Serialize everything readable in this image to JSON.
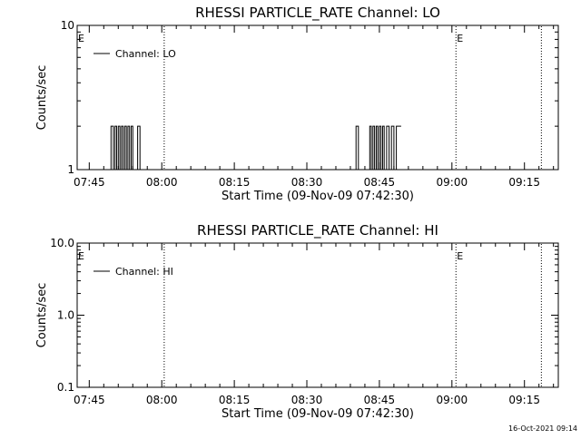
{
  "footer": {
    "timestamp": "16-Oct-2021 09:14"
  },
  "chart_data": [
    {
      "type": "line",
      "title": "RHESSI PARTICLE_RATE Channel: LO",
      "xlabel": "Start Time (09-Nov-09 07:42:30)",
      "ylabel": "Counts/sec",
      "yscale": "log",
      "ylim": [
        1,
        10
      ],
      "yticks": [
        1,
        10
      ],
      "ytick_labels": [
        "1",
        "10"
      ],
      "xlim": [
        "07:42:30",
        "09:22:00"
      ],
      "xticks": [
        "07:45",
        "08:00",
        "08:15",
        "08:30",
        "08:45",
        "09:00",
        "09:15"
      ],
      "legend": {
        "placement": "top-left",
        "entries": [
          "Channel: LO"
        ]
      },
      "markers": [
        {
          "time": "07:42:30",
          "label": "E",
          "line": false
        },
        {
          "time": "08:00:30",
          "label": "",
          "line": true
        },
        {
          "time": "09:00:50",
          "label": "E",
          "line": true
        },
        {
          "time": "09:18:30",
          "label": "",
          "line": true
        }
      ],
      "grid": false,
      "series": [
        {
          "name": "Channel: LO",
          "x": [
            "07:49:00",
            "07:49:30",
            "07:49:30",
            "07:50:00",
            "07:50:00",
            "07:50:20",
            "07:50:20",
            "07:50:40",
            "07:50:40",
            "07:51:00",
            "07:51:00",
            "07:51:20",
            "07:51:20",
            "07:51:40",
            "07:51:40",
            "07:52:00",
            "07:52:00",
            "07:52:20",
            "07:52:20",
            "07:52:40",
            "07:52:40",
            "07:53:00",
            "07:53:00",
            "07:53:20",
            "07:53:20",
            "07:53:40",
            "07:53:40",
            "07:54:00",
            "07:54:00",
            "07:55:00",
            "07:55:00",
            "07:55:30",
            "07:55:30",
            "07:55:50",
            "07:55:50",
            "08:40:10",
            "08:40:10",
            "08:40:40",
            "08:40:40",
            "08:43:00",
            "08:43:00",
            "08:43:20",
            "08:43:20",
            "08:43:40",
            "08:43:40",
            "08:44:00",
            "08:44:00",
            "08:44:20",
            "08:44:20",
            "08:44:40",
            "08:44:40",
            "08:45:00",
            "08:45:00",
            "08:45:20",
            "08:45:20",
            "08:45:40",
            "08:45:40",
            "08:46:00",
            "08:46:00",
            "08:46:30",
            "08:46:30",
            "08:47:00",
            "08:47:00",
            "08:47:30",
            "08:47:30",
            "08:48:00",
            "08:48:00",
            "08:48:30",
            "08:48:30",
            "08:49:30"
          ],
          "y": [
            1,
            1,
            2,
            2,
            1,
            1,
            2,
            2,
            1,
            1,
            2,
            2,
            1,
            1,
            2,
            2,
            1,
            1,
            2,
            2,
            1,
            1,
            2,
            2,
            1,
            1,
            2,
            2,
            1,
            1,
            2,
            2,
            1,
            1,
            1,
            1,
            2,
            2,
            1,
            1,
            2,
            2,
            1,
            1,
            2,
            2,
            1,
            1,
            2,
            2,
            1,
            1,
            2,
            2,
            1,
            1,
            2,
            2,
            1,
            1,
            2,
            2,
            1,
            1,
            2,
            2,
            1,
            1,
            2,
            2
          ]
        }
      ]
    },
    {
      "type": "line",
      "title": "RHESSI PARTICLE_RATE Channel: HI",
      "xlabel": "Start Time (09-Nov-09 07:42:30)",
      "ylabel": "Counts/sec",
      "yscale": "log",
      "ylim": [
        0.1,
        10
      ],
      "yticks": [
        0.1,
        1,
        10
      ],
      "ytick_labels": [
        "0.1",
        "1.0",
        "10.0"
      ],
      "xlim": [
        "07:42:30",
        "09:22:00"
      ],
      "xticks": [
        "07:45",
        "08:00",
        "08:15",
        "08:30",
        "08:45",
        "09:00",
        "09:15"
      ],
      "legend": {
        "placement": "top-left",
        "entries": [
          "Channel: HI"
        ]
      },
      "markers": [
        {
          "time": "07:42:30",
          "label": "E",
          "line": false
        },
        {
          "time": "08:00:30",
          "label": "",
          "line": true
        },
        {
          "time": "09:00:50",
          "label": "E",
          "line": true
        },
        {
          "time": "09:18:30",
          "label": "",
          "line": true
        }
      ],
      "grid": false,
      "series": [
        {
          "name": "Channel: HI",
          "x": [],
          "y": []
        }
      ]
    }
  ]
}
